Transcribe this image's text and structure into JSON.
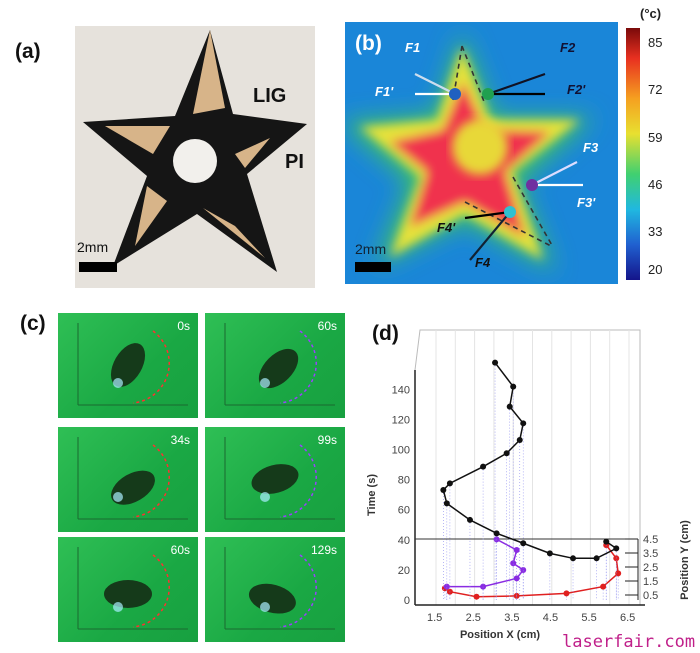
{
  "panels": {
    "a": {
      "label": "(a)",
      "lig": "LIG",
      "pi": "PI",
      "scale": "2mm"
    },
    "b": {
      "label": "(b)",
      "scale": "2mm",
      "forces": [
        "F1",
        "F1'",
        "F2",
        "F2'",
        "F3",
        "F3'",
        "F4",
        "F4'"
      ],
      "colorbar": {
        "unit": "(°c)",
        "ticks": [
          "85",
          "72",
          "59",
          "46",
          "33",
          "20"
        ]
      }
    },
    "c": {
      "label": "(c)",
      "frames": [
        "0s",
        "60s",
        "34s",
        "99s",
        "60s",
        "129s"
      ]
    },
    "d": {
      "label": "(d)"
    }
  },
  "watermark": "laserfair.com",
  "chart_data": {
    "type": "scatter",
    "projection": "3d-trajectory",
    "xlabel": "Position X (cm)",
    "ylabel": "Position Y (cm)",
    "zlabel": "Time (s)",
    "xticks": [
      "1.5",
      "2.5",
      "3.5",
      "4.5",
      "5.5",
      "6.5"
    ],
    "yticks": [
      "0.5",
      "1.5",
      "2.5",
      "3.5",
      "4.5"
    ],
    "zticks": [
      "0",
      "20",
      "40",
      "60",
      "80",
      "100",
      "120",
      "140"
    ],
    "xlim": [
      1,
      7
    ],
    "zlim": [
      0,
      160
    ],
    "grid": true,
    "series": [
      {
        "color": "#e02020",
        "x": [
          5.91,
          6.17,
          6.22,
          5.83,
          4.88,
          3.59,
          2.55,
          1.86,
          1.73
        ],
        "t": [
          36.5,
          27.7,
          17.7,
          8.9,
          4.4,
          2.7,
          2.2,
          5.5,
          7.8
        ]
      },
      {
        "color": "#8a2be2",
        "x": [
          3.07,
          3.59,
          3.5,
          3.76,
          3.59,
          2.72,
          1.78
        ],
        "t": [
          40.3,
          33.2,
          24.4,
          19.9,
          14.4,
          8.9,
          8.9
        ]
      },
      {
        "color": "#111111",
        "x": [
          3.03,
          3.5,
          3.41,
          3.76,
          3.67,
          3.33,
          2.72,
          1.86,
          1.69,
          1.78,
          2.38,
          3.07,
          3.76,
          4.45,
          5.05,
          5.66,
          6.17,
          5.91
        ],
        "t": [
          157.7,
          141.8,
          128.5,
          117.4,
          106.3,
          97.5,
          88.6,
          77.5,
          73.1,
          64.2,
          53.2,
          44.3,
          37.7,
          31.0,
          27.7,
          27.7,
          34.3,
          38.8
        ]
      }
    ]
  }
}
